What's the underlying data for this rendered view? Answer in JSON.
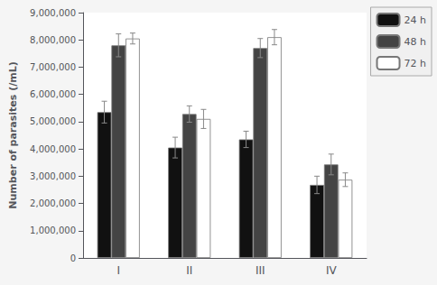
{
  "chart_data": {
    "type": "bar",
    "categories": [
      "I",
      "II",
      "III",
      "IV"
    ],
    "series": [
      {
        "name": "24 h",
        "color": "#111111",
        "values": [
          5350000,
          4050000,
          4350000,
          2680000
        ],
        "errors": [
          400000,
          380000,
          300000,
          320000
        ]
      },
      {
        "name": "48 h",
        "color": "#444444",
        "values": [
          7800000,
          5280000,
          7700000,
          3430000
        ],
        "errors": [
          420000,
          300000,
          350000,
          380000
        ]
      },
      {
        "name": "72 h",
        "color": "#ffffff",
        "values": [
          8050000,
          5100000,
          8100000,
          2870000
        ],
        "errors": [
          200000,
          350000,
          280000,
          250000
        ]
      }
    ],
    "ylabel": "Number of parasites (/mL)",
    "ylim": [
      0,
      9000000
    ],
    "yticks": [
      0,
      {
        "value": 1000000,
        "label": "1,000,000"
      },
      {
        "value": 2000000,
        "label": "2,000,000"
      },
      {
        "value": 3000000,
        "label": "3,000,000"
      },
      {
        "value": 4000000,
        "label": "4,000,000"
      },
      {
        "value": 5000000,
        "label": "5,000,000"
      },
      {
        "value": 6000000,
        "label": "6,000,000"
      },
      {
        "value": 7000000,
        "label": "7,000,000"
      },
      {
        "value": 8000000,
        "label": "8,000,000"
      },
      {
        "value": 9000000,
        "label": "9,000,000"
      }
    ],
    "grid": false,
    "legend": "upper right"
  }
}
